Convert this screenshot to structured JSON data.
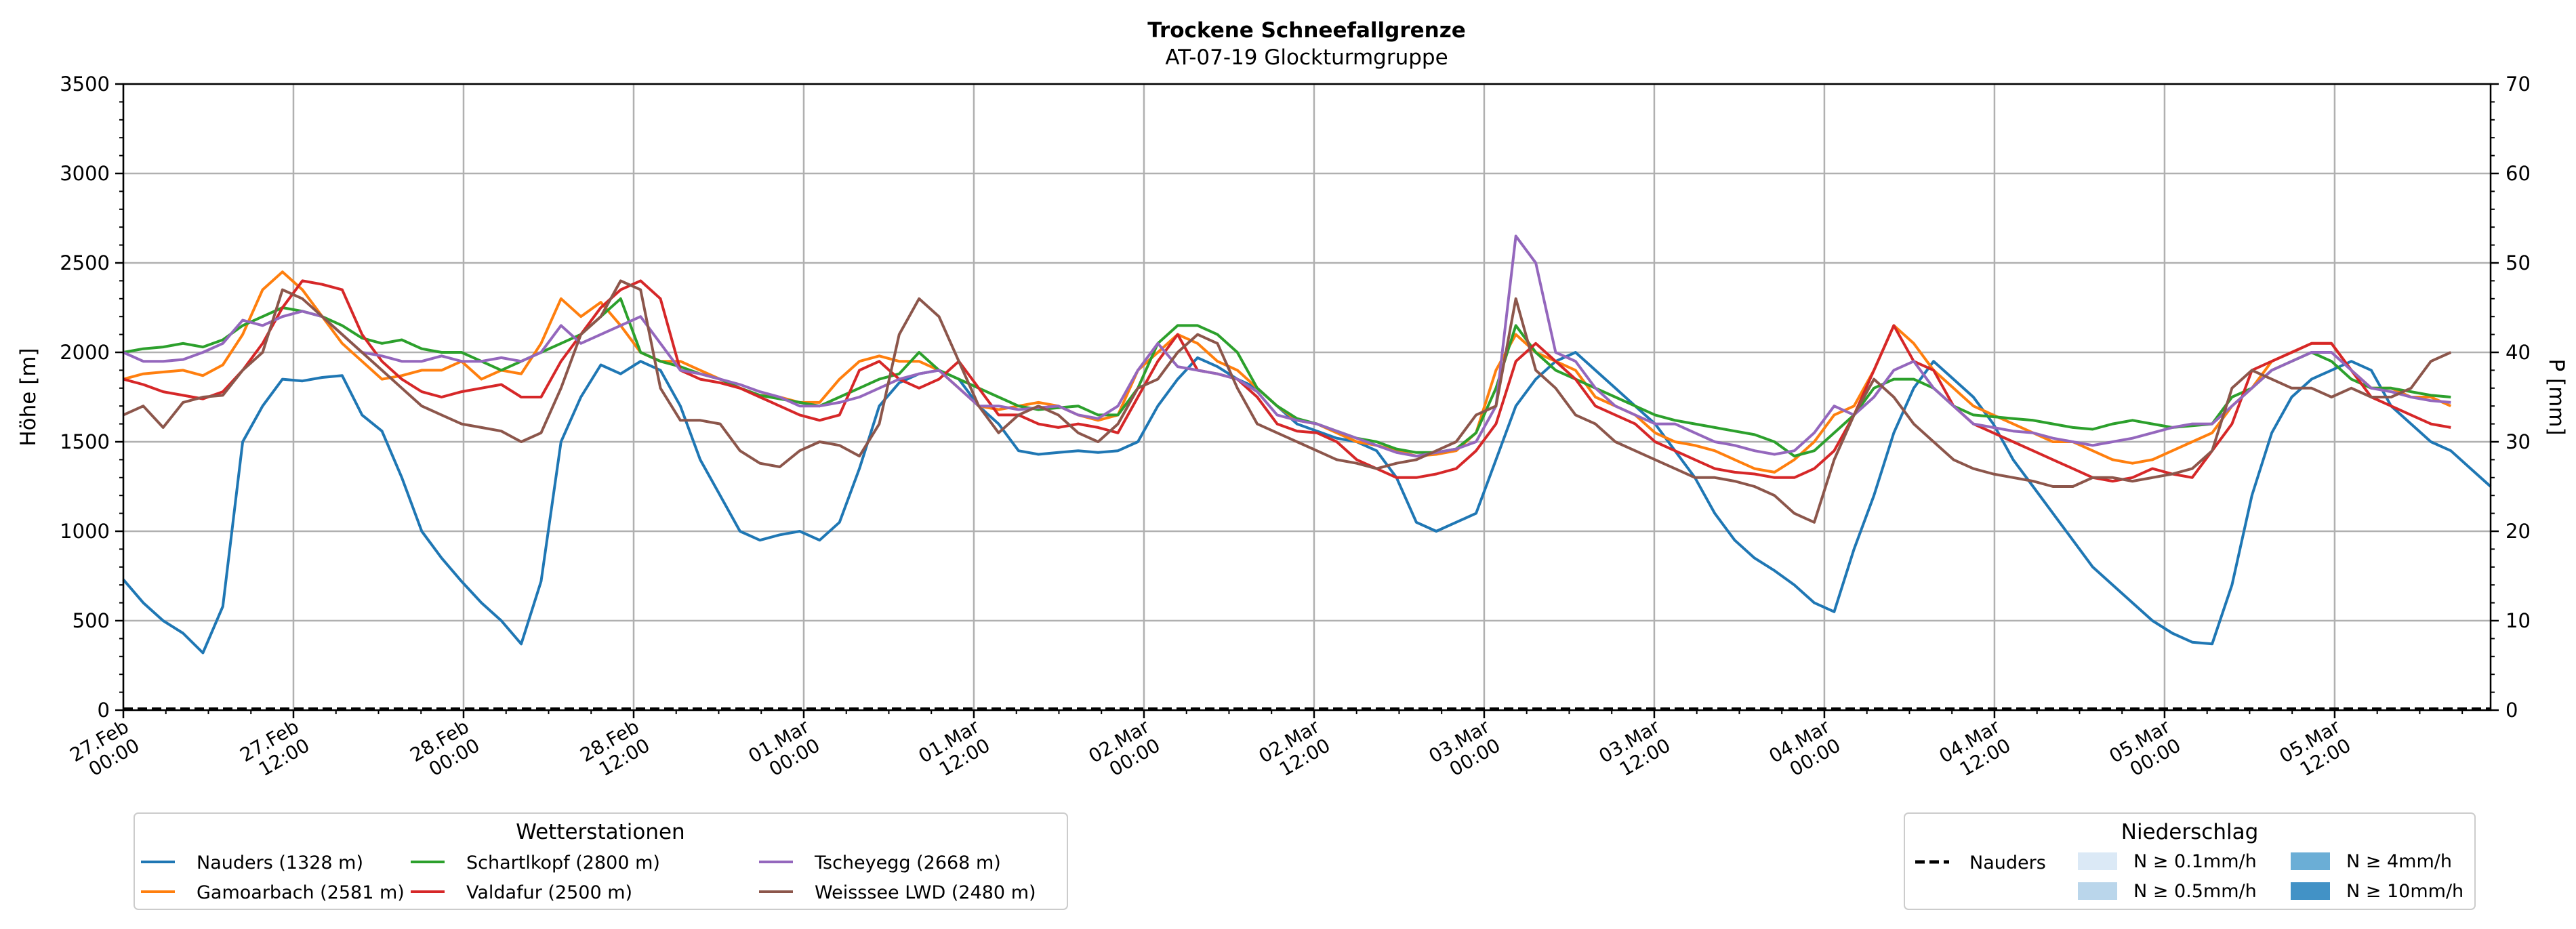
{
  "chart_data": {
    "type": "line",
    "title": "Trockene Schneefallgrenze",
    "subtitle": "AT-07-19 Glockturmgruppe",
    "ylabel": "Höhe [m]",
    "y2label": "P [mm]",
    "ylim": [
      0,
      3500
    ],
    "y2lim": [
      0,
      70
    ],
    "yticks": [
      0,
      500,
      1000,
      1500,
      2000,
      2500,
      3000,
      3500
    ],
    "y2ticks": [
      0,
      10,
      20,
      30,
      40,
      50,
      60,
      70
    ],
    "grid": true,
    "x_step_hours": 3,
    "x_ticks": [
      {
        "h": 0,
        "l1": "27.Feb",
        "l2": "00:00"
      },
      {
        "h": 12,
        "l1": "27.Feb",
        "l2": "12:00"
      },
      {
        "h": 24,
        "l1": "28.Feb",
        "l2": "00:00"
      },
      {
        "h": 36,
        "l1": "28.Feb",
        "l2": "12:00"
      },
      {
        "h": 48,
        "l1": "01.Mar",
        "l2": "00:00"
      },
      {
        "h": 60,
        "l1": "01.Mar",
        "l2": "12:00"
      },
      {
        "h": 72,
        "l1": "02.Mar",
        "l2": "00:00"
      },
      {
        "h": 84,
        "l1": "02.Mar",
        "l2": "12:00"
      },
      {
        "h": 96,
        "l1": "03.Mar",
        "l2": "00:00"
      },
      {
        "h": 108,
        "l1": "03.Mar",
        "l2": "12:00"
      },
      {
        "h": 120,
        "l1": "04.Mar",
        "l2": "00:00"
      },
      {
        "h": 132,
        "l1": "04.Mar",
        "l2": "12:00"
      },
      {
        "h": 144,
        "l1": "05.Mar",
        "l2": "00:00"
      },
      {
        "h": 156,
        "l1": "05.Mar",
        "l2": "12:00"
      }
    ],
    "x_max_hours": 167,
    "series": [
      {
        "name": "Nauders (1328 m)",
        "color": "#1f77b4",
        "values": [
          730,
          600,
          500,
          430,
          320,
          580,
          1500,
          1700,
          1850,
          1840,
          1860,
          1870,
          1650,
          1560,
          1300,
          1000,
          850,
          720,
          600,
          500,
          370,
          720,
          1500,
          1750,
          1930,
          1880,
          1950,
          1900,
          1700,
          1400,
          1200,
          1000,
          950,
          980,
          1000,
          950,
          1050,
          1350,
          1700,
          1830,
          1880,
          1900,
          1850,
          1700,
          1600,
          1450,
          1430,
          1440,
          1450,
          1440,
          1450,
          1500,
          1700,
          1850,
          1970,
          1920,
          1850,
          1800,
          1700,
          1600,
          1560,
          1520,
          1500,
          1450,
          1300,
          1050,
          1000,
          1050,
          1100,
          1400,
          1700,
          1850,
          1950,
          2000,
          1900,
          1800,
          1700,
          1600,
          1450,
          1300,
          1100,
          950,
          850,
          780,
          700,
          600,
          550,
          900,
          1200,
          1550,
          1800,
          1950,
          1850,
          1750,
          1600,
          1400,
          1250,
          1100,
          950,
          800,
          700,
          600,
          500,
          430,
          380,
          370,
          700,
          1200,
          1550,
          1750,
          1850,
          1900,
          1950,
          1900,
          1700,
          1600,
          1500,
          1450,
          1350,
          1250
        ]
      },
      {
        "name": "Gamoarbach (2581 m)",
        "color": "#ff7f0e",
        "values": [
          1850,
          1880,
          1890,
          1900,
          1870,
          1930,
          2100,
          2350,
          2450,
          2350,
          2200,
          2050,
          1950,
          1850,
          1870,
          1900,
          1900,
          1950,
          1850,
          1900,
          1880,
          2050,
          2300,
          2200,
          2280,
          2150,
          2000,
          1950,
          1950,
          1900,
          1850,
          1800,
          1760,
          1750,
          1720,
          1720,
          1850,
          1950,
          1980,
          1950,
          1950,
          1900,
          1800,
          1700,
          1680,
          1700,
          1720,
          1700,
          1650,
          1620,
          1650,
          1900,
          2000,
          2100,
          2050,
          1950,
          1900,
          1800,
          1700,
          1620,
          1600,
          1550,
          1500,
          1480,
          1450,
          1420,
          1430,
          1450,
          1550,
          1900,
          2100,
          2000,
          1950,
          1900,
          1750,
          1700,
          1650,
          1550,
          1500,
          1480,
          1450,
          1400,
          1350,
          1330,
          1400,
          1500,
          1650,
          1700,
          1900,
          2150,
          2050,
          1900,
          1800,
          1700,
          1650,
          1600,
          1550,
          1500,
          1500,
          1450,
          1400,
          1380,
          1400,
          1450,
          1500,
          1550,
          1700,
          1800,
          1950,
          2000,
          2050,
          2050,
          1900,
          1800,
          1800,
          1750,
          1750,
          1700
        ]
      },
      {
        "name": "Schartlkopf (2800 m)",
        "color": "#2ca02c",
        "values": [
          2000,
          2020,
          2030,
          2050,
          2030,
          2070,
          2150,
          2200,
          2250,
          2230,
          2200,
          2150,
          2080,
          2050,
          2070,
          2020,
          2000,
          2000,
          1950,
          1900,
          1950,
          2000,
          2050,
          2100,
          2200,
          2300,
          2000,
          1950,
          1920,
          1880,
          1850,
          1800,
          1760,
          1740,
          1720,
          1700,
          1750,
          1800,
          1850,
          1880,
          2000,
          1900,
          1850,
          1800,
          1750,
          1700,
          1680,
          1690,
          1700,
          1650,
          1650,
          1800,
          2050,
          2150,
          2150,
          2100,
          2000,
          1800,
          1700,
          1630,
          1600,
          1560,
          1520,
          1500,
          1460,
          1440,
          1440,
          1460,
          1550,
          1800,
          2150,
          2000,
          1900,
          1850,
          1800,
          1750,
          1700,
          1650,
          1620,
          1600,
          1580,
          1560,
          1540,
          1500,
          1420,
          1450,
          1550,
          1650,
          1800,
          1850,
          1850,
          1800,
          1700,
          1650,
          1640,
          1630,
          1620,
          1600,
          1580,
          1570,
          1600,
          1620,
          1600,
          1580,
          1590,
          1600,
          1750,
          1800,
          1900,
          1950,
          2000,
          1950,
          1850,
          1800,
          1800,
          1780,
          1760,
          1750
        ]
      },
      {
        "name": "Valdafur (2500 m)",
        "color": "#d62728",
        "values": [
          1850,
          1820,
          1780,
          1760,
          1740,
          1780,
          1900,
          2050,
          2250,
          2400,
          2380,
          2350,
          2100,
          1950,
          1850,
          1780,
          1750,
          1780,
          1800,
          1820,
          1750,
          1750,
          1950,
          2100,
          2250,
          2350,
          2400,
          2300,
          1900,
          1850,
          1830,
          1800,
          1750,
          1700,
          1650,
          1620,
          1650,
          1900,
          1950,
          1850,
          1800,
          1850,
          1950,
          1800,
          1650,
          1650,
          1600,
          1580,
          1600,
          1580,
          1550,
          1750,
          1950,
          2100,
          1900,
          1880,
          1850,
          1750,
          1600,
          1560,
          1550,
          1500,
          1400,
          1350,
          1300,
          1300,
          1320,
          1350,
          1450,
          1600,
          1950,
          2050,
          1950,
          1850,
          1700,
          1650,
          1600,
          1500,
          1450,
          1400,
          1350,
          1330,
          1320,
          1300,
          1300,
          1350,
          1450,
          1650,
          1900,
          2150,
          1950,
          1900,
          1700,
          1600,
          1550,
          1500,
          1450,
          1400,
          1350,
          1300,
          1280,
          1300,
          1350,
          1320,
          1300,
          1450,
          1600,
          1900,
          1950,
          2000,
          2050,
          2050,
          1900,
          1750,
          1700,
          1650,
          1600,
          1580
        ]
      },
      {
        "name": "Tscheyegg (2668 m)",
        "color": "#9467bd",
        "values": [
          2000,
          1950,
          1950,
          1960,
          2000,
          2050,
          2180,
          2150,
          2200,
          2230,
          2200,
          2100,
          2000,
          1980,
          1950,
          1950,
          1980,
          1950,
          1950,
          1970,
          1950,
          2000,
          2150,
          2050,
          2100,
          2150,
          2200,
          2050,
          1900,
          1880,
          1850,
          1820,
          1780,
          1750,
          1700,
          1700,
          1720,
          1750,
          1800,
          1850,
          1880,
          1900,
          1800,
          1700,
          1700,
          1680,
          1690,
          1700,
          1650,
          1630,
          1700,
          1900,
          2050,
          1920,
          1900,
          1880,
          1850,
          1780,
          1650,
          1620,
          1600,
          1560,
          1520,
          1480,
          1440,
          1420,
          1440,
          1460,
          1500,
          1700,
          2650,
          2500,
          2000,
          1950,
          1800,
          1700,
          1650,
          1600,
          1600,
          1550,
          1500,
          1480,
          1450,
          1430,
          1450,
          1550,
          1700,
          1650,
          1750,
          1900,
          1950,
          1800,
          1700,
          1600,
          1580,
          1560,
          1550,
          1520,
          1500,
          1480,
          1500,
          1520,
          1550,
          1580,
          1600,
          1600,
          1700,
          1800,
          1900,
          1950,
          2000,
          2000,
          1900,
          1800,
          1780,
          1750,
          1730,
          1720
        ]
      },
      {
        "name": "Weisssee LWD (2480 m)",
        "color": "#8c564b",
        "values": [
          1650,
          1700,
          1580,
          1720,
          1750,
          1760,
          1900,
          2000,
          2350,
          2300,
          2200,
          2100,
          2000,
          1900,
          1800,
          1700,
          1650,
          1600,
          1580,
          1560,
          1500,
          1550,
          1800,
          2100,
          2200,
          2400,
          2350,
          1800,
          1620,
          1620,
          1600,
          1450,
          1380,
          1360,
          1450,
          1500,
          1480,
          1420,
          1600,
          2100,
          2300,
          2200,
          1950,
          1700,
          1550,
          1650,
          1700,
          1650,
          1550,
          1500,
          1600,
          1800,
          1850,
          2000,
          2100,
          2050,
          1800,
          1600,
          1550,
          1500,
          1450,
          1400,
          1380,
          1350,
          1380,
          1400,
          1450,
          1500,
          1650,
          1700,
          2300,
          1900,
          1800,
          1650,
          1600,
          1500,
          1450,
          1400,
          1350,
          1300,
          1300,
          1280,
          1250,
          1200,
          1100,
          1050,
          1400,
          1650,
          1850,
          1750,
          1600,
          1500,
          1400,
          1350,
          1320,
          1300,
          1280,
          1250,
          1250,
          1300,
          1300,
          1280,
          1300,
          1320,
          1350,
          1450,
          1800,
          1900,
          1850,
          1800,
          1800,
          1750,
          1800,
          1750,
          1750,
          1800,
          1950,
          2000
        ]
      }
    ],
    "precip_series": [
      {
        "name": "Nauders",
        "values": [
          0,
          0
        ]
      }
    ],
    "legend_stations": {
      "title": "Wetterstationen",
      "placement": "bottom-left"
    },
    "legend_precip": {
      "title": "Niederschlag",
      "placement": "bottom-right",
      "line_label": "Nauders",
      "patches": [
        {
          "label": "N ≥ 0.1mm/h",
          "color": "#dbe9f6"
        },
        {
          "label": "N ≥ 0.5mm/h",
          "color": "#bad6eb"
        },
        {
          "label": "N ≥ 4mm/h",
          "color": "#6baed6"
        },
        {
          "label": "N ≥ 10mm/h",
          "color": "#4292c6"
        }
      ]
    }
  }
}
